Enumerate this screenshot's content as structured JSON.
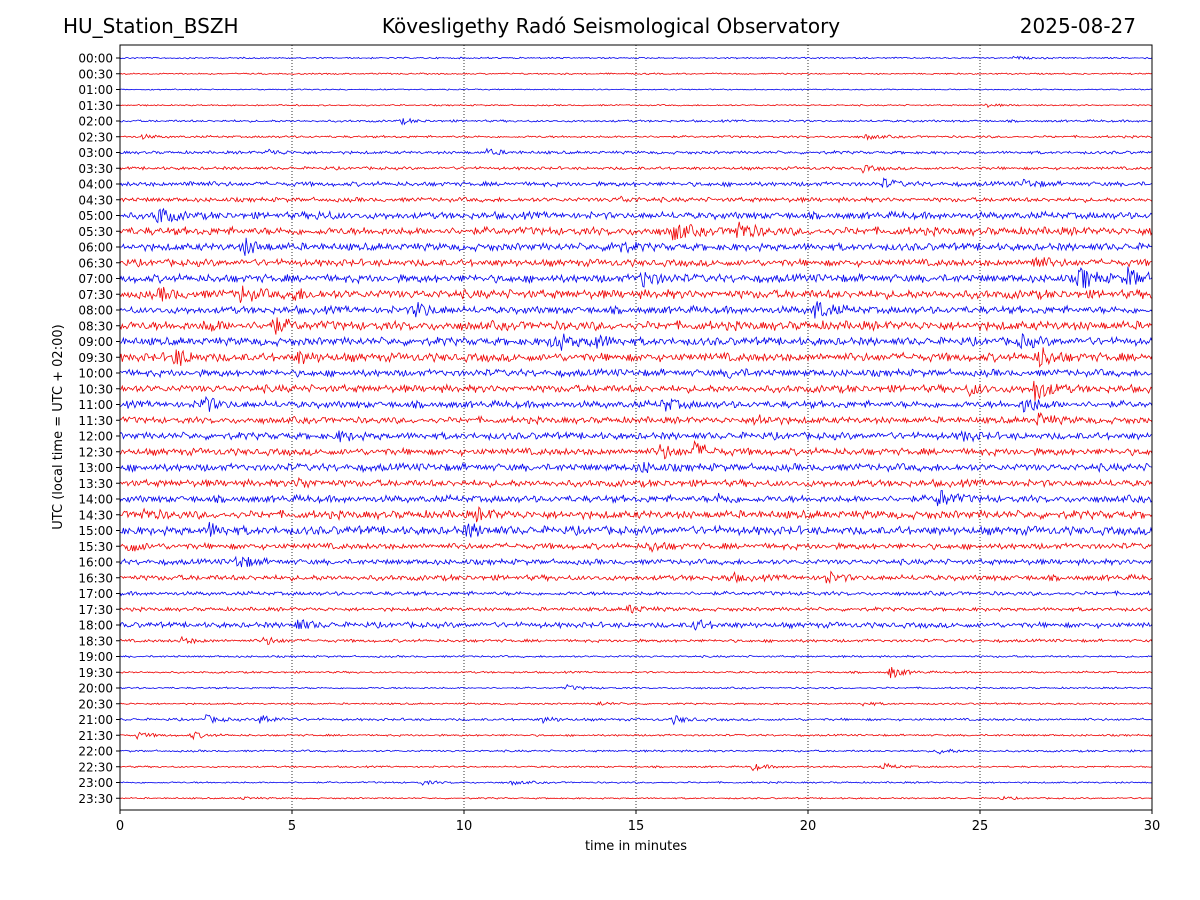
{
  "header": {
    "station": "HU_Station_BSZH",
    "title": "Kövesligethy Radó Seismological Observatory",
    "date": "2025-08-27"
  },
  "chart_data": {
    "type": "line",
    "xlabel": "time in minutes",
    "ylabel": "UTC (local time = UTC + 02:00)",
    "xlim": [
      0,
      30
    ],
    "x_ticks": [
      0,
      5,
      10,
      15,
      20,
      25,
      30
    ],
    "grid": "vertical dotted lines at 5-minute ticks",
    "legend": "none",
    "colors": {
      "even_rows": "#0000ee",
      "odd_rows": "#ee0000"
    },
    "rows": [
      {
        "label": "00:00",
        "color": "blue",
        "noise": 0.6,
        "events": [
          {
            "x": 26,
            "amp": 1.2
          }
        ]
      },
      {
        "label": "00:30",
        "color": "red",
        "noise": 0.6,
        "events": []
      },
      {
        "label": "01:00",
        "color": "blue",
        "noise": 0.5,
        "events": []
      },
      {
        "label": "01:30",
        "color": "red",
        "noise": 0.6,
        "events": [
          {
            "x": 25.2,
            "amp": 1.5
          }
        ]
      },
      {
        "label": "02:00",
        "color": "blue",
        "noise": 0.9,
        "events": [
          {
            "x": 8.2,
            "amp": 2.5
          }
        ]
      },
      {
        "label": "02:30",
        "color": "red",
        "noise": 0.9,
        "events": [
          {
            "x": 0.6,
            "amp": 2
          },
          {
            "x": 21.7,
            "amp": 2.5
          }
        ]
      },
      {
        "label": "03:00",
        "color": "blue",
        "noise": 1.2,
        "events": [
          {
            "x": 4.3,
            "amp": 3
          },
          {
            "x": 10.7,
            "amp": 3
          }
        ]
      },
      {
        "label": "03:30",
        "color": "red",
        "noise": 1.2,
        "events": [
          {
            "x": 21.6,
            "amp": 3
          }
        ]
      },
      {
        "label": "04:00",
        "color": "blue",
        "noise": 1.8,
        "events": [
          {
            "x": 2,
            "amp": 2.5
          },
          {
            "x": 22.2,
            "amp": 4
          },
          {
            "x": 26.3,
            "amp": 4
          }
        ]
      },
      {
        "label": "04:30",
        "color": "red",
        "noise": 1.8,
        "events": [
          {
            "x": 14.5,
            "amp": 2.5
          }
        ]
      },
      {
        "label": "05:00",
        "color": "blue",
        "noise": 2.8,
        "events": [
          {
            "x": 1.1,
            "amp": 9
          },
          {
            "x": 5.8,
            "amp": 3
          }
        ]
      },
      {
        "label": "05:30",
        "color": "red",
        "noise": 3.2,
        "events": [
          {
            "x": 16.1,
            "amp": 9
          },
          {
            "x": 17.9,
            "amp": 11
          }
        ]
      },
      {
        "label": "06:00",
        "color": "blue",
        "noise": 3.0,
        "events": [
          {
            "x": 3.6,
            "amp": 8
          },
          {
            "x": 14.3,
            "amp": 7
          }
        ]
      },
      {
        "label": "06:30",
        "color": "red",
        "noise": 2.8,
        "events": [
          {
            "x": 26.5,
            "amp": 8
          }
        ]
      },
      {
        "label": "07:00",
        "color": "blue",
        "noise": 3.2,
        "events": [
          {
            "x": 15.2,
            "amp": 8
          },
          {
            "x": 27.9,
            "amp": 11
          },
          {
            "x": 29.3,
            "amp": 9
          }
        ]
      },
      {
        "label": "07:30",
        "color": "red",
        "noise": 3.5,
        "events": [
          {
            "x": 1.2,
            "amp": 5
          },
          {
            "x": 3.5,
            "amp": 7
          },
          {
            "x": 5,
            "amp": 5
          }
        ]
      },
      {
        "label": "08:00",
        "color": "blue",
        "noise": 3.0,
        "events": [
          {
            "x": 8.6,
            "amp": 8
          },
          {
            "x": 20.2,
            "amp": 10
          }
        ]
      },
      {
        "label": "08:30",
        "color": "red",
        "noise": 3.6,
        "events": [
          {
            "x": 4.4,
            "amp": 8
          },
          {
            "x": 2.5,
            "amp": 5
          }
        ]
      },
      {
        "label": "09:00",
        "color": "blue",
        "noise": 3.2,
        "events": [
          {
            "x": 12.6,
            "amp": 10
          },
          {
            "x": 13.7,
            "amp": 8
          },
          {
            "x": 26.2,
            "amp": 5
          }
        ]
      },
      {
        "label": "09:30",
        "color": "red",
        "noise": 3.4,
        "events": [
          {
            "x": 1.6,
            "amp": 8
          },
          {
            "x": 5.2,
            "amp": 5
          },
          {
            "x": 26.7,
            "amp": 10
          }
        ]
      },
      {
        "label": "10:00",
        "color": "blue",
        "noise": 2.8,
        "events": [
          {
            "x": 17.7,
            "amp": 4
          }
        ]
      },
      {
        "label": "10:30",
        "color": "red",
        "noise": 3.0,
        "events": [
          {
            "x": 26.6,
            "amp": 12
          },
          {
            "x": 24.7,
            "amp": 5
          }
        ]
      },
      {
        "label": "11:00",
        "color": "blue",
        "noise": 2.8,
        "events": [
          {
            "x": 2.4,
            "amp": 8
          },
          {
            "x": 15.8,
            "amp": 6
          },
          {
            "x": 26.3,
            "amp": 9
          }
        ]
      },
      {
        "label": "11:30",
        "color": "red",
        "noise": 2.6,
        "events": [
          {
            "x": 18.5,
            "amp": 6
          },
          {
            "x": 26.7,
            "amp": 6
          }
        ]
      },
      {
        "label": "12:00",
        "color": "blue",
        "noise": 2.8,
        "events": [
          {
            "x": 6.4,
            "amp": 4
          },
          {
            "x": 24.5,
            "amp": 4
          }
        ]
      },
      {
        "label": "12:30",
        "color": "red",
        "noise": 2.8,
        "events": [
          {
            "x": 15.7,
            "amp": 7
          },
          {
            "x": 16.7,
            "amp": 8
          }
        ]
      },
      {
        "label": "13:00",
        "color": "blue",
        "noise": 3.0,
        "events": [
          {
            "x": 15.1,
            "amp": 5
          }
        ]
      },
      {
        "label": "13:30",
        "color": "red",
        "noise": 2.8,
        "events": [
          {
            "x": 5.2,
            "amp": 5
          }
        ]
      },
      {
        "label": "14:00",
        "color": "blue",
        "noise": 2.8,
        "events": [
          {
            "x": 23.8,
            "amp": 9
          },
          {
            "x": 17.4,
            "amp": 4
          }
        ]
      },
      {
        "label": "14:30",
        "color": "red",
        "noise": 3.2,
        "events": [
          {
            "x": 0.6,
            "amp": 5
          },
          {
            "x": 10.4,
            "amp": 5
          }
        ]
      },
      {
        "label": "15:00",
        "color": "blue",
        "noise": 3.4,
        "events": [
          {
            "x": 2.6,
            "amp": 6
          },
          {
            "x": 10.1,
            "amp": 6
          }
        ]
      },
      {
        "label": "15:30",
        "color": "red",
        "noise": 2.4,
        "events": [
          {
            "x": 0.2,
            "amp": 6
          },
          {
            "x": 15.4,
            "amp": 5
          }
        ]
      },
      {
        "label": "16:00",
        "color": "blue",
        "noise": 2.2,
        "events": [
          {
            "x": 3.4,
            "amp": 7
          }
        ]
      },
      {
        "label": "16:30",
        "color": "red",
        "noise": 2.2,
        "events": [
          {
            "x": 20.5,
            "amp": 6
          },
          {
            "x": 17.7,
            "amp": 4
          }
        ]
      },
      {
        "label": "17:00",
        "color": "blue",
        "noise": 1.6,
        "events": []
      },
      {
        "label": "17:30",
        "color": "red",
        "noise": 1.5,
        "events": [
          {
            "x": 14.8,
            "amp": 4
          }
        ]
      },
      {
        "label": "18:00",
        "color": "blue",
        "noise": 2.2,
        "events": [
          {
            "x": 5.1,
            "amp": 6
          },
          {
            "x": 16.7,
            "amp": 5
          }
        ]
      },
      {
        "label": "18:30",
        "color": "red",
        "noise": 1.2,
        "events": [
          {
            "x": 4.2,
            "amp": 4
          },
          {
            "x": 1.8,
            "amp": 3
          }
        ]
      },
      {
        "label": "19:00",
        "color": "blue",
        "noise": 0.8,
        "events": []
      },
      {
        "label": "19:30",
        "color": "red",
        "noise": 0.8,
        "events": [
          {
            "x": 22.4,
            "amp": 6
          }
        ]
      },
      {
        "label": "20:00",
        "color": "blue",
        "noise": 0.7,
        "events": [
          {
            "x": 13,
            "amp": 2.5
          }
        ]
      },
      {
        "label": "20:30",
        "color": "red",
        "noise": 0.7,
        "events": [
          {
            "x": 13.9,
            "amp": 2
          },
          {
            "x": 21.6,
            "amp": 2
          }
        ]
      },
      {
        "label": "21:00",
        "color": "blue",
        "noise": 1.0,
        "events": [
          {
            "x": 2.5,
            "amp": 4
          },
          {
            "x": 4.1,
            "amp": 5
          },
          {
            "x": 12.3,
            "amp": 3
          },
          {
            "x": 16.1,
            "amp": 4
          }
        ]
      },
      {
        "label": "21:30",
        "color": "red",
        "noise": 0.8,
        "events": [
          {
            "x": 0.5,
            "amp": 3
          },
          {
            "x": 2.1,
            "amp": 3.5
          }
        ]
      },
      {
        "label": "22:00",
        "color": "blue",
        "noise": 0.8,
        "events": [
          {
            "x": 23.8,
            "amp": 3
          }
        ]
      },
      {
        "label": "22:30",
        "color": "red",
        "noise": 0.7,
        "events": [
          {
            "x": 18.4,
            "amp": 3.5
          },
          {
            "x": 22.2,
            "amp": 3
          }
        ]
      },
      {
        "label": "23:00",
        "color": "blue",
        "noise": 0.7,
        "events": [
          {
            "x": 8.8,
            "amp": 2
          },
          {
            "x": 11.4,
            "amp": 2
          }
        ]
      },
      {
        "label": "23:30",
        "color": "red",
        "noise": 0.6,
        "events": [
          {
            "x": 3.5,
            "amp": 1.5
          },
          {
            "x": 25.6,
            "amp": 1.5
          }
        ]
      }
    ]
  }
}
